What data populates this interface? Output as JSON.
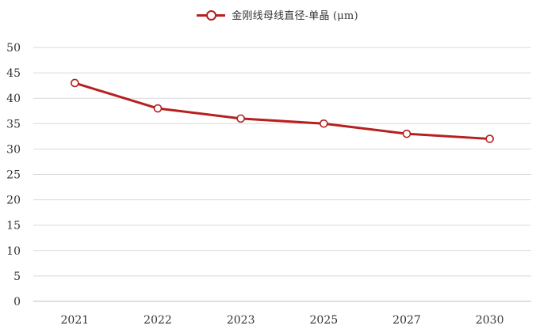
{
  "chart_data": {
    "type": "line",
    "categories": [
      "2021",
      "2022",
      "2023",
      "2025",
      "2027",
      "2030"
    ],
    "series": [
      {
        "name": "金刚线母线直径-单晶 (μm)",
        "values": [
          43,
          38,
          36,
          35,
          33,
          32
        ],
        "color": "#b81f1f"
      }
    ],
    "ylim": [
      0,
      50
    ],
    "yticks": [
      0,
      5,
      10,
      15,
      20,
      25,
      30,
      35,
      40,
      45,
      50
    ],
    "grid": true,
    "legend_position": "top-center"
  }
}
